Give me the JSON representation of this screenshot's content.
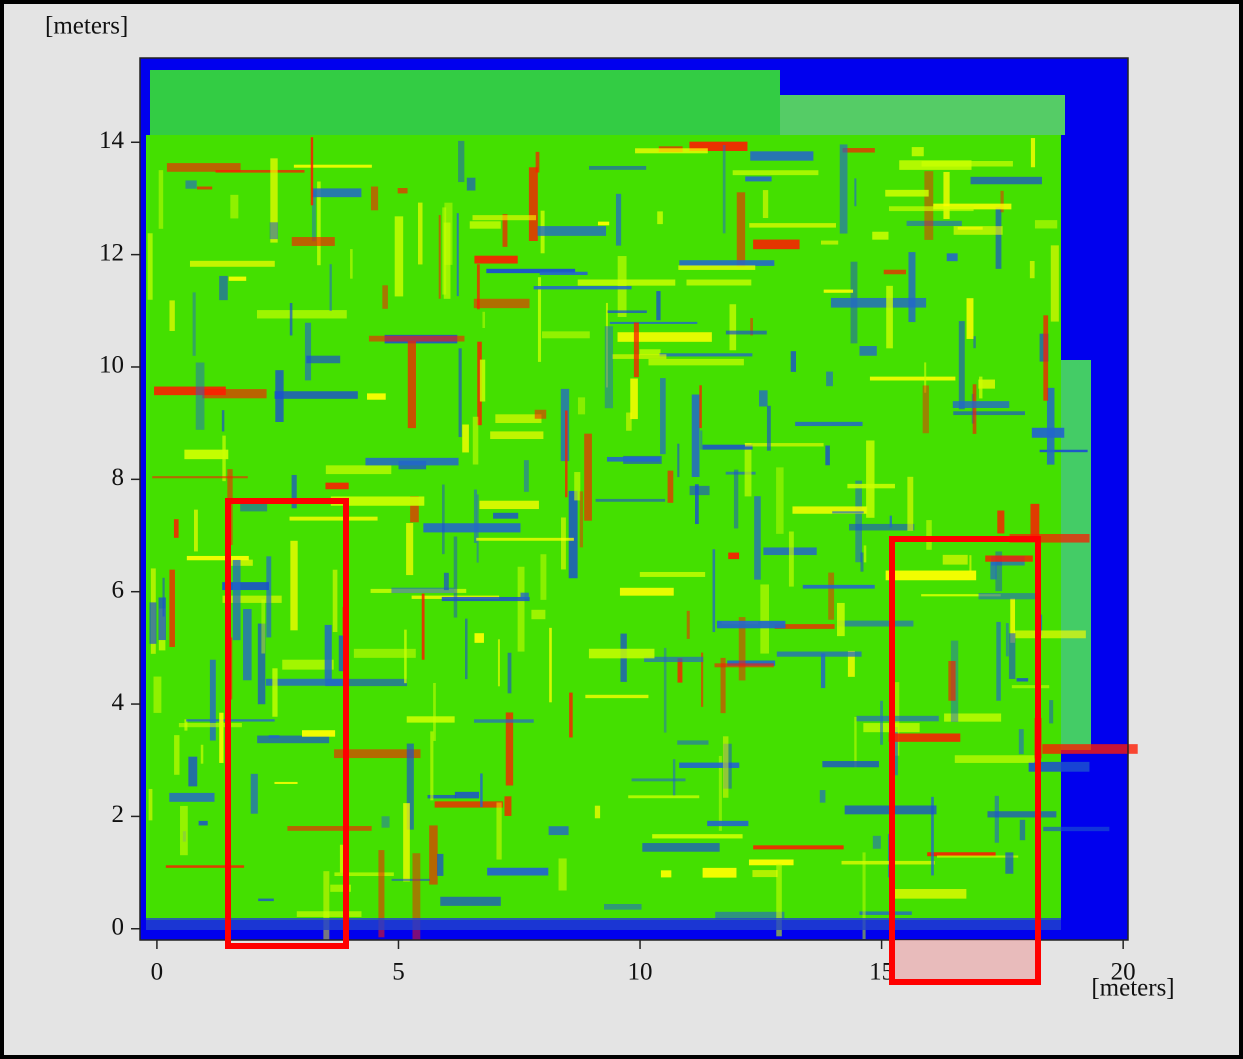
{
  "chart_data": {
    "type": "heatmap",
    "xlabel": "[meters]",
    "ylabel": "[meters]",
    "xlim": [
      -0.35,
      20.1
    ],
    "ylim": [
      -0.2,
      15.5
    ],
    "xticks": [
      0,
      5,
      10,
      15,
      20
    ],
    "yticks": [
      0,
      2,
      4,
      6,
      8,
      10,
      12,
      14
    ]
  }
}
